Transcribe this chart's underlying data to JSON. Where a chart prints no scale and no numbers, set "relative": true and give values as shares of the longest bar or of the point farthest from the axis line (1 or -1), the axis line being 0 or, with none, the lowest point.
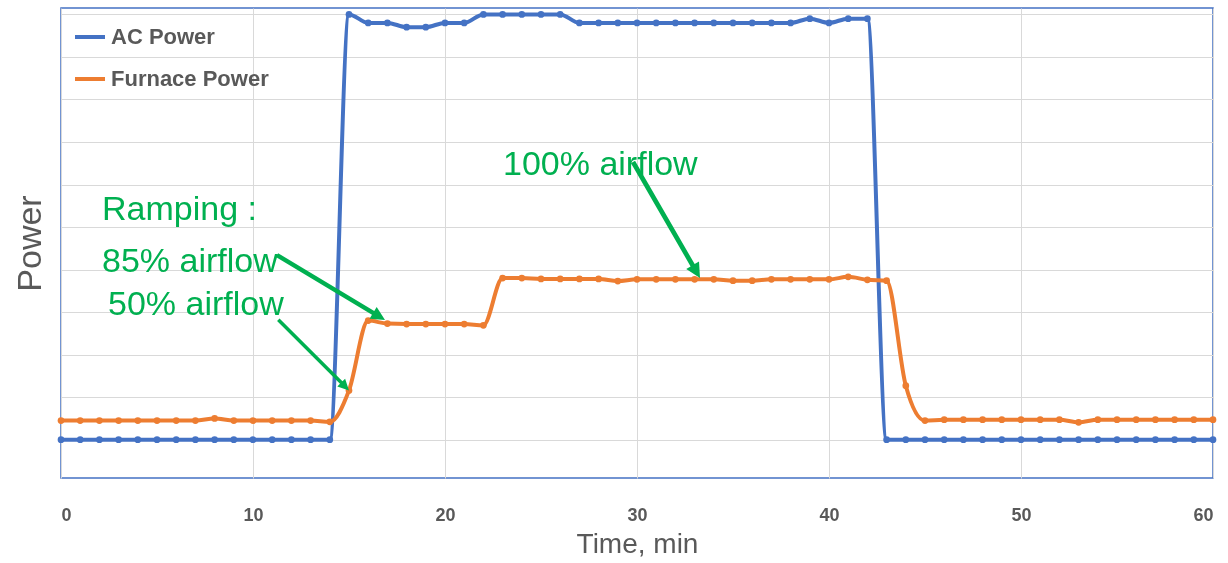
{
  "chart_data": {
    "type": "line",
    "relative": true,
    "xlabel": "Time, min",
    "ylabel": "Power",
    "x": [
      0,
      1,
      2,
      3,
      4,
      5,
      6,
      7,
      8,
      9,
      10,
      11,
      12,
      13,
      14,
      15,
      16,
      17,
      18,
      19,
      20,
      21,
      22,
      23,
      24,
      25,
      26,
      27,
      28,
      29,
      30,
      31,
      32,
      33,
      34,
      35,
      36,
      37,
      38,
      39,
      40,
      41,
      42,
      43,
      44,
      45,
      46,
      47,
      48,
      49,
      50,
      51,
      52,
      53,
      54,
      55,
      56,
      57,
      58,
      59,
      60
    ],
    "xlim": [
      0,
      60
    ],
    "xticks": [
      0,
      10,
      20,
      30,
      40,
      50,
      60
    ],
    "series": [
      {
        "name": "AC Power",
        "color": "#4472c4",
        "values": [
          0,
          0,
          0,
          0,
          0,
          0,
          0,
          0,
          0,
          0,
          0,
          0,
          0,
          0,
          0,
          1,
          0.98,
          0.98,
          0.97,
          0.97,
          0.98,
          0.98,
          1,
          1,
          1,
          1,
          1,
          0.98,
          0.98,
          0.98,
          0.98,
          0.98,
          0.98,
          0.98,
          0.98,
          0.98,
          0.98,
          0.98,
          0.98,
          0.99,
          0.98,
          0.99,
          0.99,
          0,
          0,
          0,
          0,
          0,
          0,
          0,
          0,
          0,
          0,
          0,
          0,
          0,
          0,
          0,
          0,
          0,
          0
        ]
      },
      {
        "name": "Furnace Power",
        "color": "#ed7d31",
        "values": [
          0.045,
          0.045,
          0.045,
          0.045,
          0.045,
          0.045,
          0.045,
          0.045,
          0.05,
          0.045,
          0.045,
          0.045,
          0.045,
          0.045,
          0.042,
          0.116,
          0.28,
          0.273,
          0.272,
          0.272,
          0.272,
          0.272,
          0.269,
          0.38,
          0.38,
          0.378,
          0.378,
          0.378,
          0.378,
          0.373,
          0.377,
          0.377,
          0.377,
          0.377,
          0.377,
          0.374,
          0.374,
          0.377,
          0.377,
          0.377,
          0.377,
          0.383,
          0.376,
          0.374,
          0.127,
          0.045,
          0.047,
          0.047,
          0.047,
          0.047,
          0.047,
          0.047,
          0.047,
          0.041,
          0.047,
          0.047,
          0.047,
          0.047,
          0.047,
          0.047,
          0.047
        ]
      }
    ],
    "annotations": [
      "Ramping :",
      "85% airflow",
      {
        "text": "50% airflow",
        "x": 15,
        "y": 0.116
      },
      "100% airflow"
    ],
    "grid": true,
    "legend": "top left",
    "marker": "circle",
    "line_style": "solid"
  }
}
